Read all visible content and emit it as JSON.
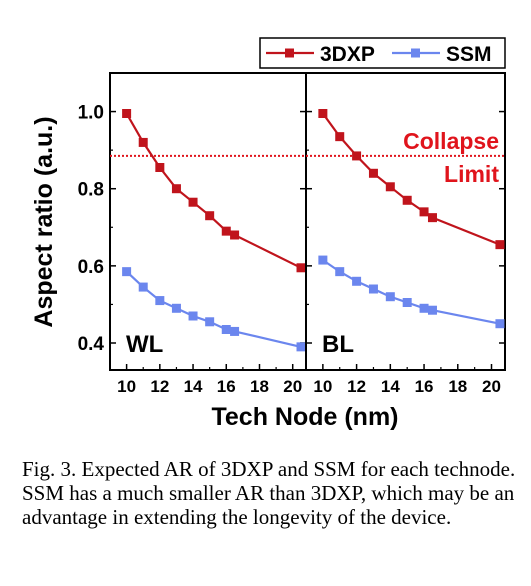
{
  "chart_data": {
    "type": "line",
    "xlabel": "Tech Node (nm)",
    "ylabel": "Aspect ratio (a.u.)",
    "xlim": [
      9,
      20.8
    ],
    "ylim": [
      0.33,
      1.1
    ],
    "xticks": [
      10,
      12,
      14,
      16,
      18,
      20
    ],
    "yticks": [
      0.4,
      0.6,
      0.8,
      1.0
    ],
    "ytick_labels": [
      "0.4",
      "0.6",
      "0.8",
      "1.0"
    ],
    "grid": false,
    "legend_position": "top-right",
    "legend": [
      "3DXP",
      "SSM"
    ],
    "colors": {
      "3DXP": "#c0141c",
      "SSM": "#6b86ee",
      "collapse": "#e0141c"
    },
    "collapse_limit": {
      "value": 0.885,
      "label_line1": "Collapse",
      "label_line2": "Limit"
    },
    "panels": [
      {
        "label": "WL",
        "series": [
          {
            "name": "3DXP",
            "x": [
              10,
              11,
              12,
              13,
              14,
              15,
              16,
              16.5,
              20.5
            ],
            "y": [
              0.995,
              0.92,
              0.855,
              0.8,
              0.765,
              0.73,
              0.69,
              0.68,
              0.595
            ]
          },
          {
            "name": "SSM",
            "x": [
              10,
              11,
              12,
              13,
              14,
              15,
              16,
              16.5,
              20.5
            ],
            "y": [
              0.585,
              0.545,
              0.51,
              0.49,
              0.47,
              0.455,
              0.435,
              0.43,
              0.39
            ]
          }
        ]
      },
      {
        "label": "BL",
        "series": [
          {
            "name": "3DXP",
            "x": [
              10,
              11,
              12,
              13,
              14,
              15,
              16,
              16.5,
              20.5
            ],
            "y": [
              0.995,
              0.935,
              0.885,
              0.84,
              0.805,
              0.77,
              0.74,
              0.725,
              0.655
            ]
          },
          {
            "name": "SSM",
            "x": [
              10,
              11,
              12,
              13,
              14,
              15,
              16,
              16.5,
              20.5
            ],
            "y": [
              0.615,
              0.585,
              0.56,
              0.54,
              0.52,
              0.505,
              0.49,
              0.485,
              0.45
            ]
          }
        ]
      }
    ]
  },
  "caption": "Fig. 3. Expected AR of 3DXP and SSM for each technode. SSM has a much smaller AR than 3DXP, which may be an advantage in extending the longevity of the device."
}
